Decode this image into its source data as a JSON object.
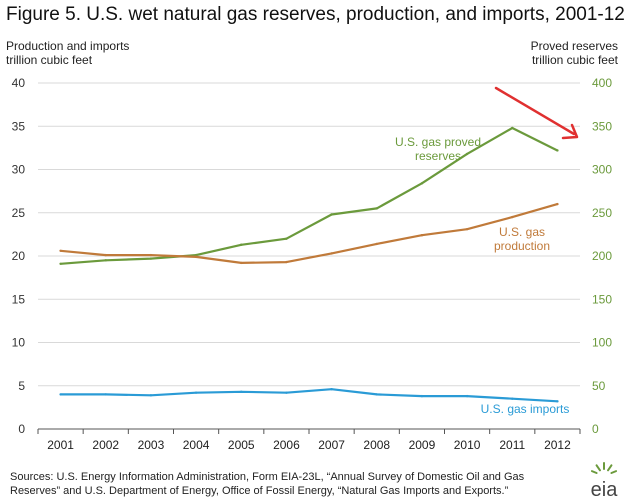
{
  "figure_title": "Figure 5. U.S. wet natural gas reserves, production, and imports, 2001-12",
  "left_axis_title": [
    "Production and imports",
    "trillion cubic feet"
  ],
  "right_axis_title": [
    "Proved reserves",
    "trillion cubic feet"
  ],
  "source_lines": [
    "Sources: U.S. Energy Information Administration, Form EIA-23L, “Annual Survey of Domestic Oil and Gas",
    "Reserves” and U.S. Department of Energy, Office of Fossil Energy, “Natural Gas Imports and Exports.”"
  ],
  "logo_text": "eia",
  "colors": {
    "reserves": "#6b9a3c",
    "production": "#c07a3a",
    "imports": "#2a9bd6",
    "left_axis_text": "#333333",
    "right_axis_text": "#6b9a3c",
    "arrow": "#e03030",
    "grid": "#d9d9d9"
  },
  "chart_data": {
    "type": "line",
    "x": [
      "2001",
      "2002",
      "2003",
      "2004",
      "2005",
      "2006",
      "2007",
      "2008",
      "2009",
      "2010",
      "2011",
      "2012"
    ],
    "left_axis": {
      "ylim": [
        0,
        40
      ],
      "ticks": [
        "0",
        "5",
        "10",
        "15",
        "20",
        "25",
        "30",
        "35",
        "40"
      ]
    },
    "right_axis": {
      "ylim": [
        0,
        400
      ],
      "ticks": [
        "0",
        "50",
        "100",
        "150",
        "200",
        "250",
        "300",
        "350",
        "400"
      ]
    },
    "grid": "horizontal",
    "series": [
      {
        "key": "reserves",
        "name": "U.S. gas proved reserves",
        "label_lines": [
          "U.S. gas proved",
          "reserves"
        ],
        "axis": "right",
        "values": [
          191,
          195,
          197,
          201,
          213,
          220,
          248,
          255,
          284,
          318,
          348,
          322
        ]
      },
      {
        "key": "production",
        "name": "U.S. gas production",
        "label_lines": [
          "U.S. gas",
          "production"
        ],
        "axis": "left",
        "values": [
          20.6,
          20.1,
          20.1,
          19.9,
          19.2,
          19.3,
          20.3,
          21.4,
          22.4,
          23.1,
          24.5,
          26.0
        ]
      },
      {
        "key": "imports",
        "name": "U.S. gas imports",
        "label_lines": [
          "U.S. gas imports"
        ],
        "axis": "left",
        "values": [
          4.0,
          4.0,
          3.9,
          4.2,
          4.3,
          4.2,
          4.6,
          4.0,
          3.8,
          3.8,
          3.5,
          3.2
        ]
      }
    ],
    "annotation": {
      "type": "arrow",
      "points_to": "right-axis",
      "color": "red"
    }
  }
}
